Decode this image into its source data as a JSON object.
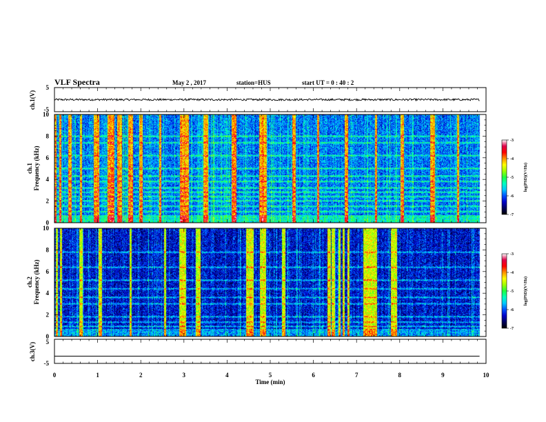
{
  "header": {
    "title": "VLF Spectra",
    "date": "May 2 , 2017",
    "station": "station=HUS",
    "start_ut": "start UT =  0 : 40 : 2"
  },
  "chart_data": [
    {
      "type": "line",
      "name": "ch1-waveform",
      "ylabel": "ch.1(V)",
      "ylim": [
        -5,
        5
      ],
      "yticks": [
        "5",
        "-5"
      ],
      "xlim": [
        0,
        10
      ],
      "trace_level": 0,
      "noise_amplitude": 0.4,
      "trace_end": 9.85
    },
    {
      "type": "heatmap",
      "name": "ch1-spectrogram",
      "ylabel_top": "ch.1",
      "ylabel": "Frequency (kHz)",
      "ylim": [
        0,
        10
      ],
      "yticks": [
        "0",
        "2",
        "4",
        "6",
        "8",
        "10"
      ],
      "xlim": [
        0,
        10
      ],
      "data_end": 9.85,
      "base_level": -5.9,
      "bright_bands_khz": [
        0.2,
        0.5,
        1.0,
        1.5,
        2.0,
        2.4,
        2.8,
        3.2,
        3.8,
        4.3,
        5.0,
        6.2,
        7.4,
        8.0
      ],
      "bursts_min": [
        0.02,
        0.12,
        0.35,
        0.6,
        0.95,
        1.0,
        1.25,
        1.3,
        1.35,
        1.5,
        1.75,
        2.0,
        2.45,
        2.95,
        3.05,
        3.5,
        4.15,
        4.8,
        4.85,
        5.55,
        6.1,
        6.75,
        7.45,
        8.05,
        8.75,
        9.35
      ]
    },
    {
      "type": "heatmap",
      "name": "ch2-spectrogram",
      "ylabel_top": "ch.2",
      "ylabel": "Frequency (kHz)",
      "ylim": [
        0,
        10
      ],
      "yticks": [
        "0",
        "2",
        "4",
        "6",
        "8",
        "10"
      ],
      "xlim": [
        0,
        10
      ],
      "data_end": 9.85,
      "base_level": -6.3,
      "bright_bands_khz": [
        0.4,
        0.9,
        1.3,
        1.8,
        3.0,
        3.6,
        4.4,
        5.2,
        6.4,
        7.8
      ],
      "bursts_min": [
        0.05,
        0.15,
        0.6,
        1.05,
        1.75,
        2.55,
        2.9,
        2.95,
        3.0,
        3.3,
        3.35,
        4.45,
        4.5,
        4.55,
        4.8,
        4.85,
        5.3,
        6.35,
        6.45,
        6.6,
        6.7,
        6.8,
        7.2,
        7.3,
        7.35,
        7.4,
        7.45,
        7.85,
        7.9
      ]
    },
    {
      "type": "line",
      "name": "ch3-waveform",
      "ylabel": "ch.3(V)",
      "ylim": [
        -5,
        5
      ],
      "yticks": [
        "5",
        "-5"
      ],
      "xlim": [
        0,
        10
      ],
      "xlabel": "Time (min)",
      "xticks": [
        "0",
        "1",
        "2",
        "3",
        "4",
        "5",
        "6",
        "7",
        "8",
        "9",
        "10"
      ],
      "trace_level": -2,
      "trace_end": 9.85
    }
  ],
  "colorbar": {
    "label": "log(PSD)(V²/Hz)",
    "ticks": [
      "-3",
      "-4",
      "-5",
      "-6",
      "-7"
    ],
    "range": [
      -7,
      -3
    ],
    "stops": [
      "#000000",
      "#00005a",
      "#0000c8",
      "#0050ff",
      "#00c8ff",
      "#00ffc0",
      "#20ff40",
      "#a0ff00",
      "#ffff00",
      "#ff9000",
      "#ff0000",
      "#e0004a",
      "#ffffff"
    ]
  }
}
